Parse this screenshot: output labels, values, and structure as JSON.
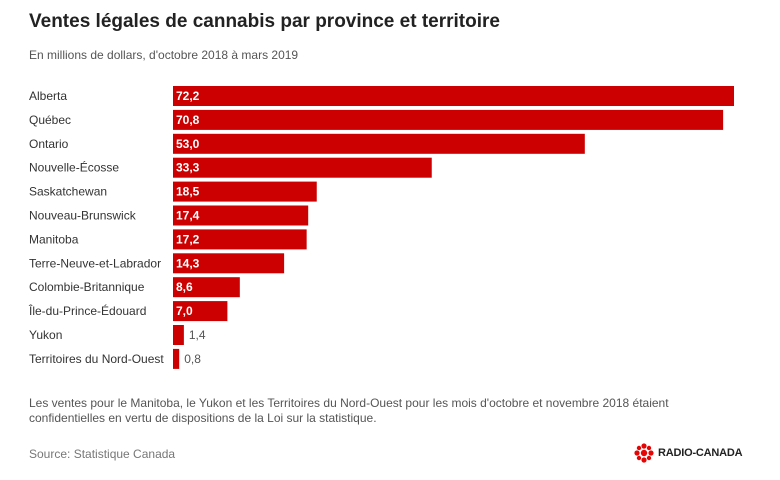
{
  "title": "Ventes légales de cannabis par province et territoire",
  "subtitle": "En millions de dollars, d'octobre 2018 à mars 2019",
  "note": "Les ventes pour le Manitoba, le Yukon et les Territoires du Nord-Ouest pour les mois d'octobre et novembre 2018 étaient confidentielles en vertu de dispositions de la Loi sur la statistique.",
  "source": "Source: Statistique Canada",
  "brand": {
    "name": "RADIO-CANADA",
    "logo_icon": "cbc-gem-icon"
  },
  "colors": {
    "bar": "#cc0000",
    "label_inside": "#ffffff",
    "label_outside": "#555555",
    "text": "#333333"
  },
  "chart_data": {
    "type": "bar",
    "orientation": "horizontal",
    "categories": [
      "Alberta",
      "Québec",
      "Ontario",
      "Nouvelle-Écosse",
      "Saskatchewan",
      "Nouveau-Brunswick",
      "Manitoba",
      "Terre-Neuve-et-Labrador",
      "Colombie-Britannique",
      "Île-du-Prince-Édouard",
      "Yukon",
      "Territoires du Nord-Ouest"
    ],
    "values": [
      72.2,
      70.8,
      53.0,
      33.3,
      18.5,
      17.4,
      17.2,
      14.3,
      8.6,
      7.0,
      1.4,
      0.8
    ],
    "value_labels": [
      "72,2",
      "70,8",
      "53,0",
      "33,3",
      "18,5",
      "17,4",
      "17,2",
      "14,3",
      "8,6",
      "7,0",
      "1,4",
      "0,8"
    ],
    "title": "Ventes légales de cannabis par province et territoire",
    "subtitle": "En millions de dollars, d'octobre 2018 à mars 2019",
    "xlim": [
      0,
      72.2
    ],
    "grid": false,
    "legend": "none"
  }
}
